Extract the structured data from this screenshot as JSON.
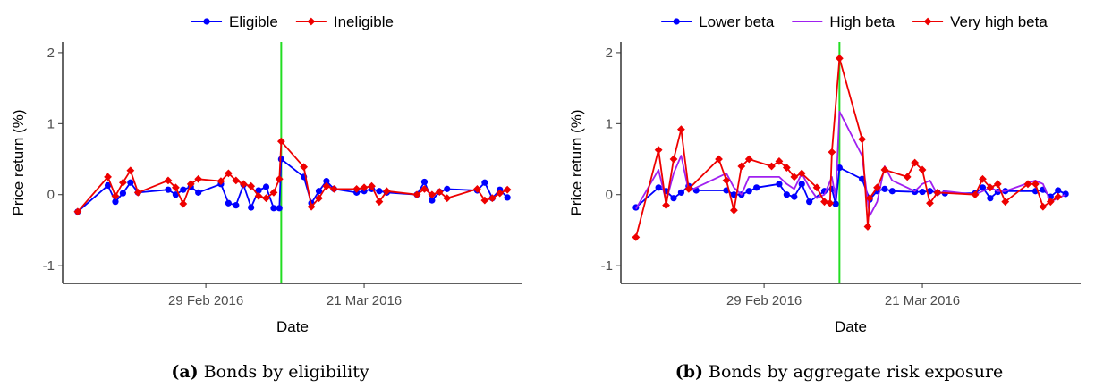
{
  "chart_data": [
    {
      "type": "line",
      "caption_label": "(a)",
      "caption_text": "Bonds by eligibility",
      "xlabel": "Date",
      "ylabel": "Price return (%)",
      "x_axis": "date",
      "xlim": [
        "2016-02-10",
        "2016-04-11"
      ],
      "ylim": [
        -1.25,
        2.15
      ],
      "yticks": [
        -1,
        0,
        1,
        2
      ],
      "ytick_labels": [
        "-1",
        "0",
        "1",
        "2"
      ],
      "xticks": [
        "2016-02-29",
        "2016-03-21"
      ],
      "xtick_labels": [
        "29 Feb 2016",
        "21 Mar 2016"
      ],
      "vline": {
        "x": "2016-03-10",
        "color": "#22dd22"
      },
      "grid": false,
      "legend_position": "top",
      "series": [
        {
          "name": "Eligible",
          "color": "#0000ff",
          "marker": "circle",
          "points": [
            [
              "2016-02-12",
              -0.24
            ],
            [
              "2016-02-16",
              0.13
            ],
            [
              "2016-02-17",
              -0.1
            ],
            [
              "2016-02-18",
              0.02
            ],
            [
              "2016-02-19",
              0.17
            ],
            [
              "2016-02-20",
              0.03
            ],
            [
              "2016-02-24",
              0.07
            ],
            [
              "2016-02-25",
              0.0
            ],
            [
              "2016-02-26",
              0.07
            ],
            [
              "2016-02-27",
              0.11
            ],
            [
              "2016-02-28",
              0.03
            ],
            [
              "2016-03-02",
              0.15
            ],
            [
              "2016-03-03",
              -0.12
            ],
            [
              "2016-03-04",
              -0.15
            ],
            [
              "2016-03-05",
              0.14
            ],
            [
              "2016-03-06",
              -0.18
            ],
            [
              "2016-03-07",
              0.06
            ],
            [
              "2016-03-08",
              0.11
            ],
            [
              "2016-03-09",
              -0.19
            ],
            [
              "2016-03-09T18:00",
              -0.19
            ],
            [
              "2016-03-10",
              0.5
            ],
            [
              "2016-03-13",
              0.25
            ],
            [
              "2016-03-14",
              -0.12
            ],
            [
              "2016-03-15",
              0.05
            ],
            [
              "2016-03-16",
              0.19
            ],
            [
              "2016-03-17",
              0.08
            ],
            [
              "2016-03-20",
              0.03
            ],
            [
              "2016-03-21",
              0.05
            ],
            [
              "2016-03-22",
              0.08
            ],
            [
              "2016-03-23",
              0.05
            ],
            [
              "2016-03-24",
              0.03
            ],
            [
              "2016-03-28",
              0.0
            ],
            [
              "2016-03-29",
              0.18
            ],
            [
              "2016-03-30",
              -0.08
            ],
            [
              "2016-03-31",
              0.04
            ],
            [
              "2016-04-01",
              0.08
            ],
            [
              "2016-04-05",
              0.06
            ],
            [
              "2016-04-06",
              0.17
            ],
            [
              "2016-04-07",
              -0.05
            ],
            [
              "2016-04-08",
              0.07
            ],
            [
              "2016-04-09",
              -0.04
            ]
          ]
        },
        {
          "name": "Ineligible",
          "color": "#ee0000",
          "marker": "diamond",
          "points": [
            [
              "2016-02-12",
              -0.24
            ],
            [
              "2016-02-16",
              0.25
            ],
            [
              "2016-02-17",
              -0.02
            ],
            [
              "2016-02-18",
              0.17
            ],
            [
              "2016-02-19",
              0.34
            ],
            [
              "2016-02-20",
              0.03
            ],
            [
              "2016-02-24",
              0.2
            ],
            [
              "2016-02-25",
              0.1
            ],
            [
              "2016-02-26",
              -0.13
            ],
            [
              "2016-02-27",
              0.15
            ],
            [
              "2016-02-28",
              0.22
            ],
            [
              "2016-03-02",
              0.19
            ],
            [
              "2016-03-03",
              0.3
            ],
            [
              "2016-03-04",
              0.2
            ],
            [
              "2016-03-05",
              0.15
            ],
            [
              "2016-03-06",
              0.12
            ],
            [
              "2016-03-07",
              -0.02
            ],
            [
              "2016-03-08",
              -0.05
            ],
            [
              "2016-03-09",
              0.03
            ],
            [
              "2016-03-09T18:00",
              0.22
            ],
            [
              "2016-03-10",
              0.75
            ],
            [
              "2016-03-13",
              0.39
            ],
            [
              "2016-03-14",
              -0.17
            ],
            [
              "2016-03-15",
              -0.05
            ],
            [
              "2016-03-16",
              0.12
            ],
            [
              "2016-03-17",
              0.08
            ],
            [
              "2016-03-20",
              0.08
            ],
            [
              "2016-03-21",
              0.1
            ],
            [
              "2016-03-22",
              0.12
            ],
            [
              "2016-03-23",
              -0.1
            ],
            [
              "2016-03-24",
              0.05
            ],
            [
              "2016-03-28",
              0.0
            ],
            [
              "2016-03-29",
              0.08
            ],
            [
              "2016-03-30",
              0.0
            ],
            [
              "2016-03-31",
              0.04
            ],
            [
              "2016-04-01",
              -0.05
            ],
            [
              "2016-04-05",
              0.08
            ],
            [
              "2016-04-06",
              -0.08
            ],
            [
              "2016-04-07",
              -0.05
            ],
            [
              "2016-04-08",
              0.02
            ],
            [
              "2016-04-09",
              0.07
            ]
          ]
        }
      ]
    },
    {
      "type": "line",
      "caption_label": "(b)",
      "caption_text": "Bonds by aggregate risk exposure",
      "xlabel": "Date",
      "ylabel": "Price return (%)",
      "x_axis": "date",
      "xlim": [
        "2016-02-10",
        "2016-04-11"
      ],
      "ylim": [
        -1.25,
        2.15
      ],
      "yticks": [
        -1,
        0,
        1,
        2
      ],
      "ytick_labels": [
        "-1",
        "0",
        "1",
        "2"
      ],
      "xticks": [
        "2016-02-29",
        "2016-03-21"
      ],
      "xtick_labels": [
        "29 Feb 2016",
        "21 Mar 2016"
      ],
      "vline": {
        "x": "2016-03-10",
        "color": "#22dd22"
      },
      "grid": false,
      "legend_position": "top",
      "series": [
        {
          "name": "Lower beta",
          "color": "#0000ff",
          "marker": "circle",
          "points": [
            [
              "2016-02-12",
              -0.18
            ],
            [
              "2016-02-15",
              0.1
            ],
            [
              "2016-02-16",
              0.05
            ],
            [
              "2016-02-17",
              -0.05
            ],
            [
              "2016-02-18",
              0.03
            ],
            [
              "2016-02-19",
              0.12
            ],
            [
              "2016-02-20",
              0.06
            ],
            [
              "2016-02-24",
              0.06
            ],
            [
              "2016-02-25",
              0.0
            ],
            [
              "2016-02-26",
              0.0
            ],
            [
              "2016-02-27",
              0.05
            ],
            [
              "2016-02-28",
              0.1
            ],
            [
              "2016-03-02",
              0.15
            ],
            [
              "2016-03-03",
              0.0
            ],
            [
              "2016-03-04",
              -0.03
            ],
            [
              "2016-03-05",
              0.15
            ],
            [
              "2016-03-06",
              -0.1
            ],
            [
              "2016-03-08",
              0.05
            ],
            [
              "2016-03-09",
              0.08
            ],
            [
              "2016-03-09T12:00",
              -0.13
            ],
            [
              "2016-03-10",
              0.38
            ],
            [
              "2016-03-13",
              0.22
            ],
            [
              "2016-03-14",
              -0.07
            ],
            [
              "2016-03-15",
              0.05
            ],
            [
              "2016-03-16",
              0.08
            ],
            [
              "2016-03-17",
              0.05
            ],
            [
              "2016-03-20",
              0.04
            ],
            [
              "2016-03-21",
              0.04
            ],
            [
              "2016-03-22",
              0.05
            ],
            [
              "2016-03-23",
              0.03
            ],
            [
              "2016-03-24",
              0.02
            ],
            [
              "2016-03-28",
              0.02
            ],
            [
              "2016-03-29",
              0.1
            ],
            [
              "2016-03-30",
              -0.05
            ],
            [
              "2016-03-31",
              0.04
            ],
            [
              "2016-04-01",
              0.05
            ],
            [
              "2016-04-05",
              0.05
            ],
            [
              "2016-04-06",
              0.07
            ],
            [
              "2016-04-07",
              -0.03
            ],
            [
              "2016-04-08",
              0.06
            ],
            [
              "2016-04-09",
              0.01
            ]
          ]
        },
        {
          "name": "High beta",
          "color": "#a020f0",
          "marker": "none",
          "points": [
            [
              "2016-02-12",
              -0.2
            ],
            [
              "2016-02-15",
              0.35
            ],
            [
              "2016-02-16",
              -0.1
            ],
            [
              "2016-02-17",
              0.3
            ],
            [
              "2016-02-18",
              0.55
            ],
            [
              "2016-02-19",
              0.05
            ],
            [
              "2016-02-24",
              0.3
            ],
            [
              "2016-02-25",
              0.1
            ],
            [
              "2016-02-26",
              0.0
            ],
            [
              "2016-02-27",
              0.25
            ],
            [
              "2016-02-28",
              0.25
            ],
            [
              "2016-03-02",
              0.25
            ],
            [
              "2016-03-03",
              0.15
            ],
            [
              "2016-03-04",
              0.08
            ],
            [
              "2016-03-05",
              0.3
            ],
            [
              "2016-03-06",
              0.1
            ],
            [
              "2016-03-07",
              -0.05
            ],
            [
              "2016-03-08",
              0.0
            ],
            [
              "2016-03-09",
              0.25
            ],
            [
              "2016-03-09T12:00",
              -0.05
            ],
            [
              "2016-03-10",
              1.17
            ],
            [
              "2016-03-13",
              0.55
            ],
            [
              "2016-03-14",
              -0.3
            ],
            [
              "2016-03-15",
              -0.1
            ],
            [
              "2016-03-16",
              0.4
            ],
            [
              "2016-03-17",
              0.2
            ],
            [
              "2016-03-20",
              0.05
            ],
            [
              "2016-03-21",
              0.15
            ],
            [
              "2016-03-22",
              0.2
            ],
            [
              "2016-03-23",
              0.0
            ],
            [
              "2016-03-24",
              0.05
            ],
            [
              "2016-03-28",
              0.0
            ],
            [
              "2016-03-29",
              0.05
            ],
            [
              "2016-03-30",
              0.1
            ],
            [
              "2016-03-31",
              0.05
            ],
            [
              "2016-04-01",
              0.05
            ],
            [
              "2016-04-05",
              0.2
            ],
            [
              "2016-04-06",
              0.15
            ],
            [
              "2016-04-07",
              -0.1
            ],
            [
              "2016-04-08",
              -0.05
            ],
            [
              "2016-04-09",
              0.0
            ]
          ]
        },
        {
          "name": "Very high beta",
          "color": "#ee0000",
          "marker": "diamond",
          "points": [
            [
              "2016-02-12",
              -0.6
            ],
            [
              "2016-02-15",
              0.63
            ],
            [
              "2016-02-16",
              -0.15
            ],
            [
              "2016-02-17",
              0.5
            ],
            [
              "2016-02-18",
              0.92
            ],
            [
              "2016-02-19",
              0.08
            ],
            [
              "2016-02-23",
              0.5
            ],
            [
              "2016-02-24",
              0.2
            ],
            [
              "2016-02-25",
              -0.22
            ],
            [
              "2016-02-26",
              0.4
            ],
            [
              "2016-02-27",
              0.5
            ],
            [
              "2016-03-01",
              0.4
            ],
            [
              "2016-03-02",
              0.47
            ],
            [
              "2016-03-03",
              0.38
            ],
            [
              "2016-03-04",
              0.25
            ],
            [
              "2016-03-05",
              0.3
            ],
            [
              "2016-03-07",
              0.1
            ],
            [
              "2016-03-08",
              -0.1
            ],
            [
              "2016-03-08T18:00",
              -0.12
            ],
            [
              "2016-03-09",
              0.6
            ],
            [
              "2016-03-10",
              1.92
            ],
            [
              "2016-03-13",
              0.78
            ],
            [
              "2016-03-13T18:00",
              -0.45
            ],
            [
              "2016-03-14",
              -0.05
            ],
            [
              "2016-03-15",
              0.1
            ],
            [
              "2016-03-16",
              0.35
            ],
            [
              "2016-03-19",
              0.25
            ],
            [
              "2016-03-20",
              0.45
            ],
            [
              "2016-03-21",
              0.35
            ],
            [
              "2016-03-22",
              -0.12
            ],
            [
              "2016-03-23",
              0.03
            ],
            [
              "2016-03-28",
              0.0
            ],
            [
              "2016-03-29",
              0.22
            ],
            [
              "2016-03-30",
              0.1
            ],
            [
              "2016-03-31",
              0.15
            ],
            [
              "2016-04-01",
              -0.1
            ],
            [
              "2016-04-04",
              0.15
            ],
            [
              "2016-04-05",
              0.15
            ],
            [
              "2016-04-06",
              -0.17
            ],
            [
              "2016-04-07",
              -0.1
            ],
            [
              "2016-04-08",
              -0.03
            ]
          ]
        }
      ]
    }
  ]
}
